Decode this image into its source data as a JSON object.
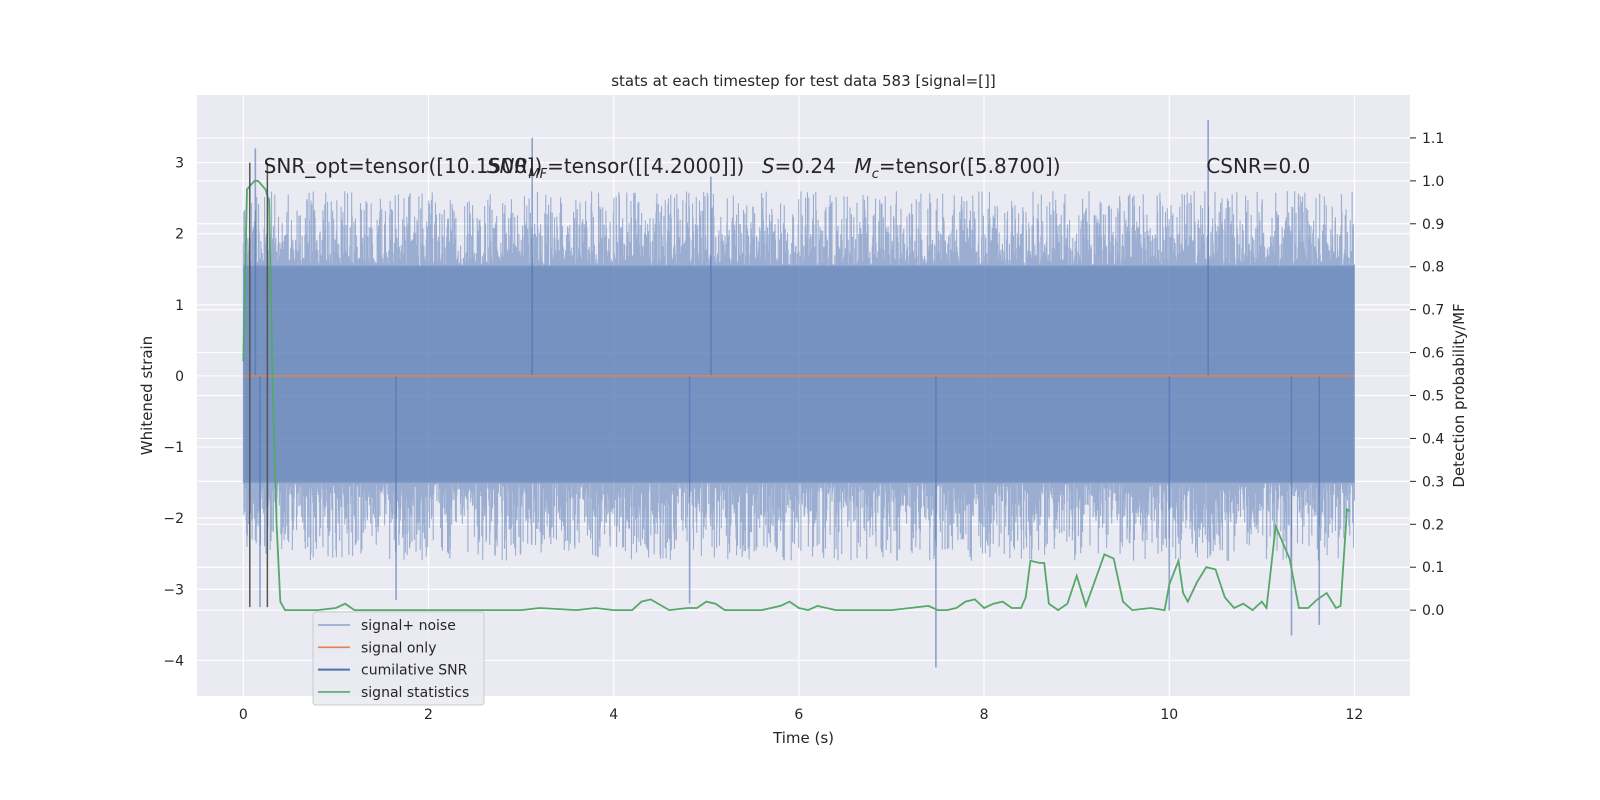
{
  "chart_data": {
    "type": "line",
    "title": "stats at each timestep for test data 583 [signal=[]]",
    "xlabel": "Time (s)",
    "ylabel": "Whitened strain",
    "y2label": "Detection probability/MF",
    "xlim": [
      -0.5,
      12.6
    ],
    "ylim": [
      -4.5,
      3.95
    ],
    "y2lim": [
      -0.2,
      1.2
    ],
    "x_ticks": [
      0,
      2,
      4,
      6,
      8,
      10,
      12
    ],
    "y_ticks": [
      -4,
      -3,
      -2,
      -1,
      0,
      1,
      2,
      3
    ],
    "y2_ticks": [
      0.0,
      0.1,
      0.2,
      0.3,
      0.4,
      0.5,
      0.6,
      0.7,
      0.8,
      0.9,
      1.0,
      1.1
    ],
    "grid": true,
    "legend_position": "lower-left",
    "annotations": [
      {
        "text": "SNR_opt=tensor([10.1500])",
        "x": 0.22,
        "y": 2.85
      },
      {
        "text": "SNR_MF=tensor([[4.2000]])",
        "x": 2.63,
        "y": 2.85
      },
      {
        "text": "S=0.24",
        "x": 5.6,
        "y": 2.85
      },
      {
        "text": "M_c=tensor([5.8700])",
        "x": 6.6,
        "y": 2.85
      },
      {
        "text": "CSNR=0.0",
        "x": 10.4,
        "y": 2.85
      }
    ],
    "series": [
      {
        "name": "signal+ noise",
        "color": "#4c72b0",
        "axis": "left",
        "style": "noise",
        "x_range": [
          0,
          12
        ],
        "core_band": [
          -1.5,
          1.55
        ],
        "peak_range": [
          -2.6,
          2.6
        ],
        "extremes": [
          {
            "x": 0.13,
            "y": 3.2
          },
          {
            "x": 0.18,
            "y": -3.25
          },
          {
            "x": 3.12,
            "y": 3.35
          },
          {
            "x": 1.65,
            "y": -3.15
          },
          {
            "x": 4.82,
            "y": -3.2
          },
          {
            "x": 5.05,
            "y": 2.8
          },
          {
            "x": 7.48,
            "y": -4.1
          },
          {
            "x": 10.0,
            "y": -3.3
          },
          {
            "x": 10.42,
            "y": 3.6
          },
          {
            "x": 11.32,
            "y": -3.65
          },
          {
            "x": 11.62,
            "y": -3.5
          }
        ]
      },
      {
        "name": "signal only",
        "color": "#dd8452",
        "axis": "left",
        "x": [
          0,
          12
        ],
        "y": [
          0,
          0
        ]
      },
      {
        "name": "cumilative SNR",
        "color": "#4c72b0",
        "axis": "left",
        "x": [],
        "y": []
      },
      {
        "name": "signal statistics",
        "color": "#55a868",
        "axis": "right",
        "x": [
          0.0,
          0.04,
          0.08,
          0.12,
          0.16,
          0.2,
          0.24,
          0.28,
          0.32,
          0.36,
          0.4,
          0.45,
          0.55,
          0.8,
          1.0,
          1.1,
          1.2,
          1.6,
          2.0,
          2.4,
          2.8,
          3.0,
          3.2,
          3.6,
          3.8,
          4.0,
          4.2,
          4.3,
          4.4,
          4.6,
          4.8,
          4.9,
          5.0,
          5.1,
          5.2,
          5.4,
          5.6,
          5.8,
          5.9,
          6.0,
          6.1,
          6.2,
          6.4,
          6.6,
          6.8,
          7.0,
          7.2,
          7.4,
          7.5,
          7.6,
          7.7,
          7.8,
          7.9,
          8.0,
          8.1,
          8.2,
          8.3,
          8.4,
          8.45,
          8.5,
          8.6,
          8.65,
          8.7,
          8.8,
          8.9,
          9.0,
          9.1,
          9.2,
          9.3,
          9.4,
          9.5,
          9.6,
          9.8,
          9.95,
          10.0,
          10.1,
          10.15,
          10.2,
          10.3,
          10.4,
          10.5,
          10.6,
          10.7,
          10.8,
          10.9,
          11.0,
          11.05,
          11.15,
          11.3,
          11.4,
          11.5,
          11.6,
          11.7,
          11.8,
          11.85,
          11.92,
          11.95
        ],
        "y": [
          0.58,
          0.98,
          0.99,
          1.0,
          1.0,
          0.99,
          0.98,
          0.95,
          0.5,
          0.2,
          0.02,
          0.0,
          0.0,
          0.0,
          0.005,
          0.015,
          0.0,
          0.0,
          0.0,
          0.0,
          0.0,
          0.0,
          0.005,
          0.0,
          0.005,
          0.0,
          0.0,
          0.02,
          0.025,
          0.0,
          0.005,
          0.005,
          0.02,
          0.015,
          0.0,
          0.0,
          0.0,
          0.01,
          0.02,
          0.005,
          0.0,
          0.01,
          0.0,
          0.0,
          0.0,
          0.0,
          0.005,
          0.01,
          0.0,
          0.0,
          0.005,
          0.02,
          0.025,
          0.005,
          0.015,
          0.02,
          0.005,
          0.005,
          0.03,
          0.115,
          0.11,
          0.11,
          0.015,
          0.0,
          0.015,
          0.08,
          0.01,
          0.07,
          0.13,
          0.12,
          0.02,
          0.0,
          0.005,
          0.0,
          0.06,
          0.115,
          0.04,
          0.02,
          0.065,
          0.1,
          0.095,
          0.03,
          0.005,
          0.015,
          0.0,
          0.02,
          0.005,
          0.195,
          0.12,
          0.005,
          0.005,
          0.025,
          0.04,
          0.005,
          0.01,
          0.235,
          0.23
        ]
      }
    ],
    "markers": [
      {
        "kind": "vertical-line",
        "x": 0.07,
        "y": [
          -3.25,
          3.0
        ],
        "color": "#555555"
      },
      {
        "kind": "vertical-line",
        "x": 0.26,
        "y": [
          -3.25,
          3.0
        ],
        "color": "#555555"
      }
    ]
  }
}
